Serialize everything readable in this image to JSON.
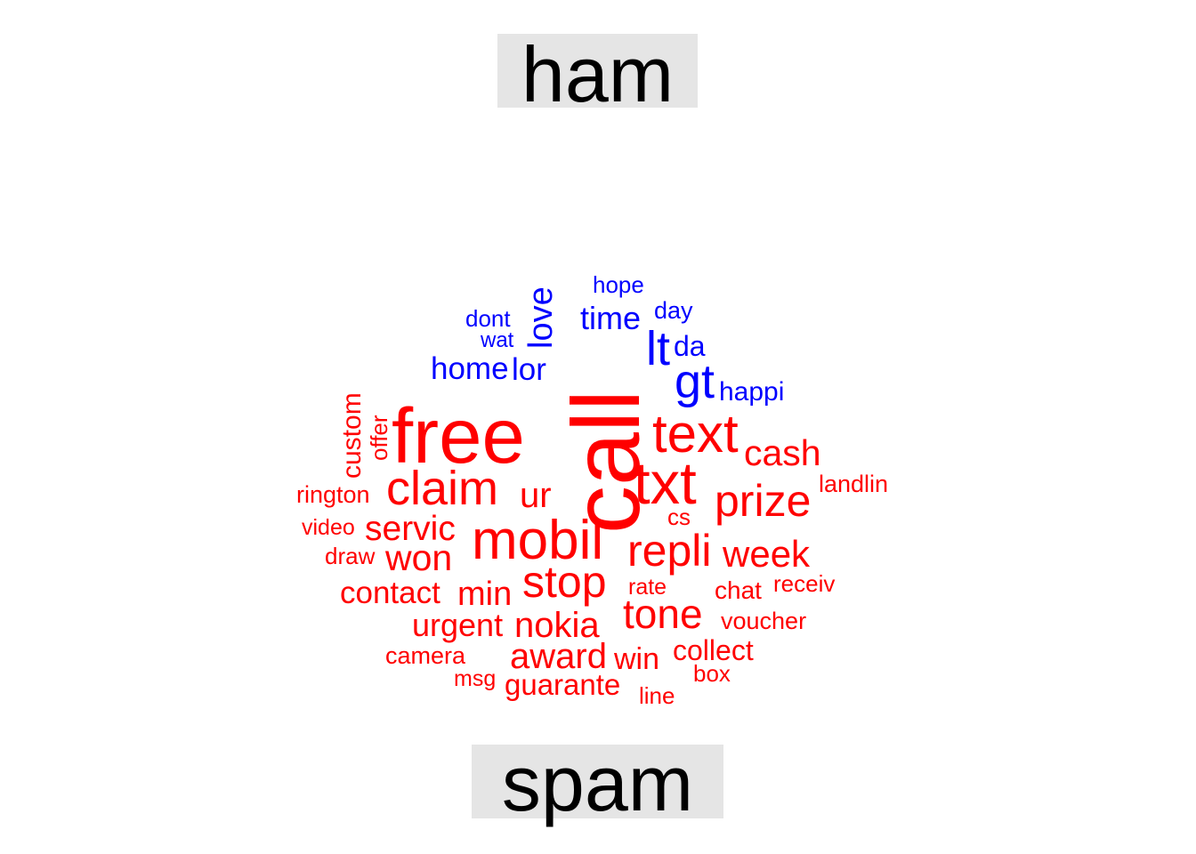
{
  "labels": {
    "ham": "ham",
    "spam": "spam"
  },
  "colors": {
    "ham": "#0000ff",
    "spam": "#ff0000",
    "label_background": "#e5e5e5"
  },
  "words": {
    "ham": [
      "hope",
      "dont",
      "wat",
      "love",
      "time",
      "day",
      "lt",
      "da",
      "home",
      "lor",
      "gt",
      "happi"
    ],
    "spam": [
      "call",
      "free",
      "text",
      "txt",
      "cash",
      "custom",
      "offer",
      "claim",
      "rington",
      "ur",
      "prize",
      "landlin",
      "cs",
      "video",
      "servic",
      "mobil",
      "draw",
      "won",
      "repli",
      "week",
      "contact",
      "min",
      "stop",
      "rate",
      "chat",
      "receiv",
      "tone",
      "urgent",
      "nokia",
      "voucher",
      "camera",
      "award",
      "win",
      "collect",
      "msg",
      "guarante",
      "box",
      "line"
    ]
  }
}
